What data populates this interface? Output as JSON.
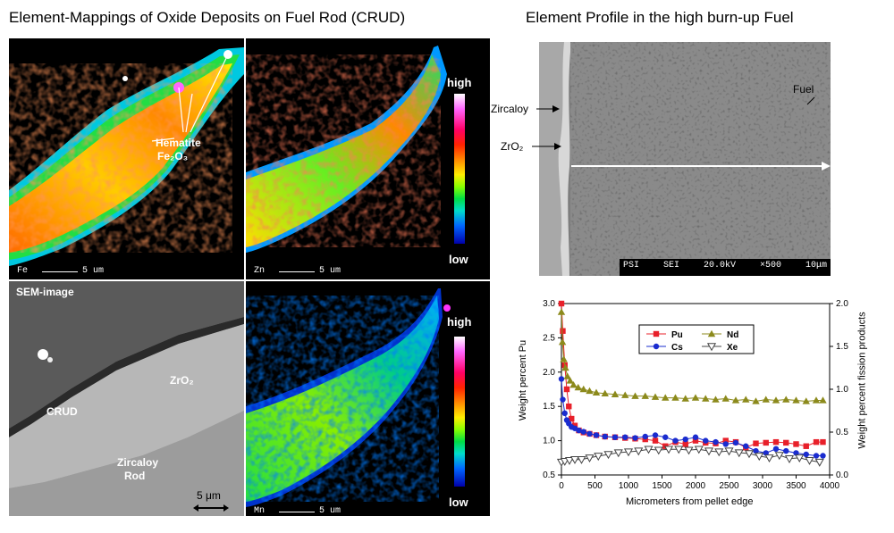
{
  "titles": {
    "left": "Element-Mappings of Oxide Deposits on Fuel Rod (CRUD)",
    "right": "Element Profile in the high burn-up Fuel"
  },
  "maps": {
    "fe": {
      "element": "Fe",
      "scale": "5 um",
      "annotation_line1": "Hematite",
      "annotation_line2": "Fe₂O₃"
    },
    "zn": {
      "element": "Zn",
      "scale": "5 um",
      "cb_high": "high",
      "cb_low": "low"
    },
    "mn": {
      "element": "Mn",
      "scale": "5 um",
      "cb_high": "high",
      "cb_low": "low"
    }
  },
  "sem_image": {
    "title": "SEM-image",
    "crud": "CRUD",
    "zro2": "ZrO₂",
    "zircaloy_line1": "Zircaloy",
    "zircaloy_line2": "Rod",
    "scale": "5 μm"
  },
  "fuel_sem": {
    "fuel": "Fuel",
    "zircaloy": "Zircaloy",
    "zro2": "ZrO₂",
    "footer": [
      "PSI",
      "SEI",
      "20.0kV",
      "×500",
      "10μm"
    ]
  },
  "chart_data": {
    "type": "line",
    "xlabel": "Micrometers from pellet edge",
    "ylabel_left": "Weight percent Pu",
    "ylabel_right": "Weight percent fission products",
    "xlim": [
      0,
      4000
    ],
    "ylim_left": [
      0.5,
      3.0
    ],
    "ylim_right": [
      0,
      2.0
    ],
    "x_ticks": [
      "0",
      "500",
      "1000",
      "1500",
      "2000",
      "2500",
      "3000",
      "3500",
      "4000"
    ],
    "y_left_ticks": [
      "0.5",
      "1.0",
      "1.5",
      "2.0",
      "2.5",
      "3.0"
    ],
    "y_right_ticks": [
      "0.0",
      "0.5",
      "1.0",
      "1.5",
      "2.0"
    ],
    "grid": false,
    "legend_position": "top-center",
    "series": [
      {
        "name": "Pu",
        "axis": "left",
        "color": "#e8202a",
        "marker": "square",
        "x": [
          0,
          20,
          50,
          80,
          110,
          150,
          200,
          260,
          330,
          420,
          520,
          650,
          800,
          950,
          1100,
          1250,
          1400,
          1550,
          1700,
          1850,
          2000,
          2150,
          2300,
          2450,
          2600,
          2750,
          2900,
          3050,
          3200,
          3350,
          3500,
          3650,
          3800,
          3900
        ],
        "y": [
          3.0,
          2.6,
          2.1,
          1.75,
          1.5,
          1.32,
          1.22,
          1.15,
          1.12,
          1.1,
          1.08,
          1.06,
          1.05,
          1.04,
          1.03,
          1.02,
          1.0,
          0.92,
          0.98,
          0.95,
          1.0,
          0.97,
          0.96,
          1.0,
          0.98,
          0.9,
          0.96,
          0.97,
          0.98,
          0.97,
          0.95,
          0.92,
          0.98,
          0.98
        ]
      },
      {
        "name": "Cs",
        "axis": "left",
        "color": "#1a2ccf",
        "marker": "circle",
        "x": [
          0,
          20,
          50,
          80,
          110,
          150,
          200,
          260,
          330,
          420,
          520,
          650,
          800,
          950,
          1100,
          1250,
          1400,
          1550,
          1700,
          1850,
          2000,
          2150,
          2300,
          2450,
          2600,
          2750,
          2900,
          3050,
          3200,
          3350,
          3500,
          3650,
          3800,
          3900
        ],
        "y": [
          1.9,
          1.6,
          1.4,
          1.3,
          1.25,
          1.2,
          1.18,
          1.15,
          1.13,
          1.1,
          1.08,
          1.06,
          1.05,
          1.05,
          1.04,
          1.06,
          1.08,
          1.05,
          1.0,
          1.02,
          1.05,
          1.0,
          0.98,
          0.95,
          0.97,
          0.92,
          0.85,
          0.82,
          0.88,
          0.85,
          0.82,
          0.8,
          0.78,
          0.78
        ]
      },
      {
        "name": "Nd",
        "axis": "right",
        "color": "#8c8a1c",
        "marker": "triangle-up",
        "x": [
          0,
          15,
          35,
          60,
          90,
          130,
          180,
          250,
          330,
          420,
          520,
          650,
          800,
          950,
          1100,
          1250,
          1400,
          1550,
          1700,
          1850,
          2000,
          2150,
          2300,
          2450,
          2600,
          2750,
          2900,
          3050,
          3200,
          3350,
          3500,
          3650,
          3800,
          3900
        ],
        "y": [
          1.9,
          1.55,
          1.35,
          1.25,
          1.15,
          1.1,
          1.05,
          1.02,
          1.0,
          0.98,
          0.96,
          0.95,
          0.94,
          0.93,
          0.92,
          0.92,
          0.91,
          0.9,
          0.9,
          0.89,
          0.9,
          0.89,
          0.88,
          0.89,
          0.87,
          0.88,
          0.86,
          0.88,
          0.87,
          0.88,
          0.87,
          0.86,
          0.87,
          0.87
        ]
      },
      {
        "name": "Xe",
        "axis": "right",
        "color": "#444444",
        "marker": "triangle-down",
        "x": [
          0,
          50,
          120,
          200,
          300,
          420,
          550,
          700,
          850,
          1000,
          1150,
          1300,
          1450,
          1600,
          1750,
          1900,
          2050,
          2200,
          2350,
          2500,
          2650,
          2800,
          2950,
          3100,
          3250,
          3400,
          3550,
          3700,
          3850
        ],
        "y": [
          0.15,
          0.16,
          0.17,
          0.18,
          0.18,
          0.2,
          0.22,
          0.24,
          0.26,
          0.27,
          0.28,
          0.3,
          0.29,
          0.3,
          0.3,
          0.29,
          0.3,
          0.28,
          0.27,
          0.28,
          0.26,
          0.25,
          0.22,
          0.2,
          0.23,
          0.19,
          0.2,
          0.17,
          0.15
        ]
      }
    ]
  }
}
